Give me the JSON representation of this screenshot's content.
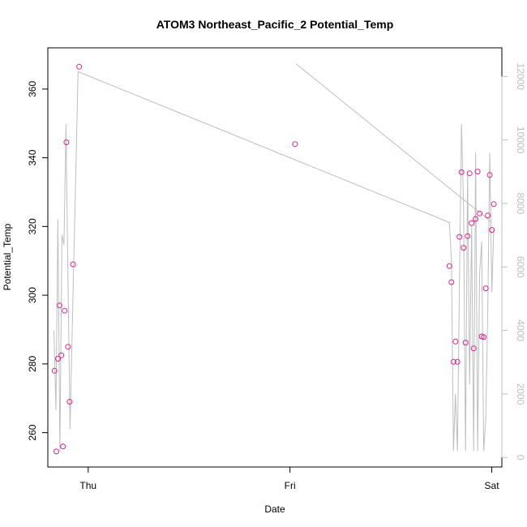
{
  "chart_data": {
    "type": "scatter",
    "title": "ATOM3 Northeast_Pacific_2 Potential_Temp",
    "xlabel": "Date",
    "ylabel": "Potential_Temp",
    "x_ticks": [
      "Thu",
      "Fri",
      "Sat"
    ],
    "x_range_days": [
      -0.2,
      2.05
    ],
    "ylim": [
      250,
      372
    ],
    "y_ticks": [
      260,
      280,
      300,
      320,
      340,
      360
    ],
    "y2lim": [
      -300,
      12900
    ],
    "y2_ticks": [
      0,
      2000,
      4000,
      6000,
      8000,
      10000,
      12000
    ],
    "grid": false,
    "colors": {
      "points": "#e0238c",
      "line": "#bebebe",
      "right_axis": "#bebebe"
    },
    "series": [
      {
        "type": "scatter",
        "axis": "left",
        "x_days": [
          -0.167,
          -0.158,
          -0.15,
          -0.142,
          -0.133,
          -0.125,
          -0.117,
          -0.108,
          -0.1,
          -0.092,
          -0.075,
          -0.045,
          1.025,
          1.79,
          1.8,
          1.81,
          1.82,
          1.83,
          1.84,
          1.85,
          1.86,
          1.87,
          1.88,
          1.89,
          1.9,
          1.91,
          1.92,
          1.93,
          1.94,
          1.95,
          1.96,
          1.97,
          1.98,
          1.99,
          2.0,
          2.01
        ],
        "values": [
          278,
          254.5,
          281.5,
          297,
          282.5,
          256,
          295.5,
          344.5,
          285,
          269,
          309,
          366.5,
          344,
          308.5,
          303.8,
          280.6,
          286.5,
          280.6,
          317,
          335.8,
          313.8,
          286.2,
          317.2,
          335.5,
          321,
          284.5,
          322.2,
          336,
          323.8,
          288,
          287.8,
          302,
          323.2,
          335,
          319,
          326.5
        ]
      },
      {
        "type": "line",
        "axis": "right",
        "x_days": [
          -0.17,
          -0.16,
          -0.15,
          -0.14,
          -0.13,
          -0.12,
          -0.11,
          -0.1,
          -0.09,
          -0.08,
          -0.05,
          1.79,
          1.8,
          1.81,
          1.82,
          1.83,
          1.84,
          1.85,
          1.86,
          1.87,
          1.88,
          1.89,
          1.9,
          1.91,
          1.92,
          1.93,
          1.94,
          1.95,
          1.96,
          1.97,
          1.98,
          1.99,
          2.0,
          2.01
        ],
        "values": [
          4000,
          1500,
          7500,
          200,
          7000,
          6700,
          10500,
          5500,
          900,
          3800,
          12150,
          7400,
          6200,
          200,
          2000,
          200,
          5500,
          10500,
          8000,
          200,
          9000,
          2300,
          7300,
          200,
          9600,
          200,
          5800,
          6800,
          200,
          1200,
          4600,
          9600,
          5200,
          7200
        ]
      },
      {
        "type": "line",
        "axis": "right",
        "x_days": [
          1.03,
          2.0
        ],
        "values": [
          12400,
          7400
        ]
      }
    ]
  }
}
